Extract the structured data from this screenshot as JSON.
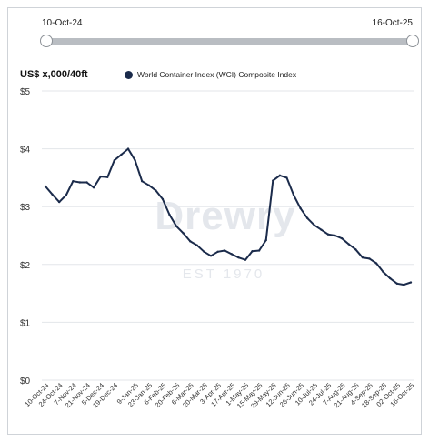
{
  "range_slider": {
    "start_label": "10-Oct-24",
    "end_label": "16-Oct-25"
  },
  "watermark": {
    "brand": "Drewry",
    "tagline": "EST 1970"
  },
  "colors": {
    "series": "#1b2b4b",
    "grid": "#e3e6ea",
    "slider_track": "#b9bdc2"
  },
  "chart_data": {
    "type": "line",
    "ylabel": "US$ x,000/40ft",
    "ylim": [
      0,
      5
    ],
    "y_ticks": [
      "$0",
      "$1",
      "$2",
      "$3",
      "$4",
      "$5"
    ],
    "x_tick_labels": [
      "10-Oct-24",
      "24-Oct-24",
      "7-Nov-24",
      "21-Nov-24",
      "5-Dec-24",
      "19-Dec-24",
      "9-Jan-25",
      "23-Jan-25",
      "6-Feb-25",
      "20-Feb-25",
      "6-Mar-25",
      "20-Mar-25",
      "3-Apr-25",
      "17-Apr-25",
      "1-May-25",
      "15-May-25",
      "29-May-25",
      "12-Jun-25",
      "26-Jun-25",
      "10-Jul-25",
      "24-Jul-25",
      "7-Aug-25",
      "21-Aug-25",
      "4-Sep-25",
      "18-Sep-25",
      "02-Oct-25",
      "16-Oct-25"
    ],
    "grid": true,
    "legend_position": "top",
    "series": [
      {
        "name": "World Container Index (WCI) Composite Index",
        "x": [
          "10-Oct-24",
          "17-Oct-24",
          "24-Oct-24",
          "31-Oct-24",
          "7-Nov-24",
          "14-Nov-24",
          "21-Nov-24",
          "28-Nov-24",
          "5-Dec-24",
          "12-Dec-24",
          "19-Dec-24",
          "26-Dec-24",
          "2-Jan-25",
          "9-Jan-25",
          "16-Jan-25",
          "23-Jan-25",
          "30-Jan-25",
          "6-Feb-25",
          "13-Feb-25",
          "20-Feb-25",
          "27-Feb-25",
          "6-Mar-25",
          "13-Mar-25",
          "20-Mar-25",
          "27-Mar-25",
          "3-Apr-25",
          "10-Apr-25",
          "17-Apr-25",
          "24-Apr-25",
          "1-May-25",
          "8-May-25",
          "15-May-25",
          "22-May-25",
          "29-May-25",
          "5-Jun-25",
          "12-Jun-25",
          "19-Jun-25",
          "26-Jun-25",
          "3-Jul-25",
          "10-Jul-25",
          "17-Jul-25",
          "24-Jul-25",
          "31-Jul-25",
          "7-Aug-25",
          "14-Aug-25",
          "21-Aug-25",
          "28-Aug-25",
          "4-Sep-25",
          "11-Sep-25",
          "18-Sep-25",
          "25-Sep-25",
          "02-Oct-25",
          "9-Oct-25",
          "16-Oct-25"
        ],
        "values": [
          3.35,
          3.21,
          3.08,
          3.2,
          3.44,
          3.42,
          3.42,
          3.33,
          3.52,
          3.51,
          3.8,
          3.9,
          4.0,
          3.8,
          3.44,
          3.37,
          3.28,
          3.13,
          2.86,
          2.66,
          2.54,
          2.4,
          2.33,
          2.22,
          2.15,
          2.22,
          2.24,
          2.18,
          2.12,
          2.08,
          2.23,
          2.24,
          2.42,
          3.45,
          3.54,
          3.5,
          3.2,
          2.97,
          2.8,
          2.68,
          2.6,
          2.52,
          2.5,
          2.45,
          2.35,
          2.26,
          2.12,
          2.1,
          2.02,
          1.87,
          1.76,
          1.67,
          1.65,
          1.69
        ]
      }
    ]
  }
}
